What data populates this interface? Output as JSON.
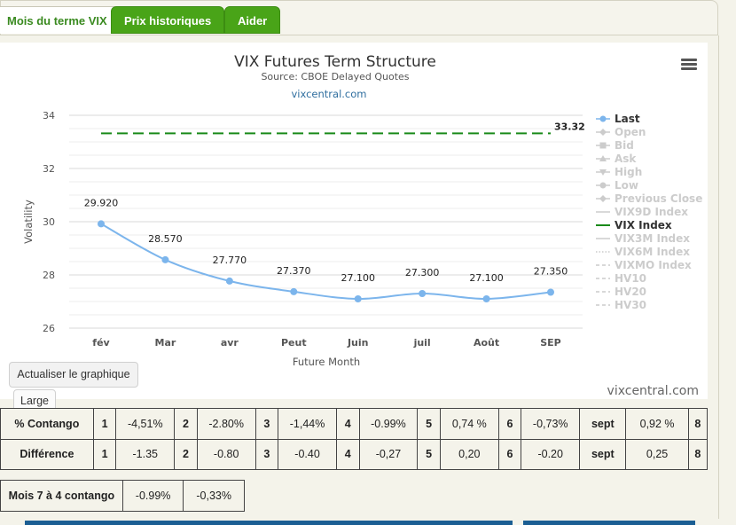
{
  "tabs": [
    {
      "label": "Mois du terme VIX"
    },
    {
      "label": "Prix historiques"
    },
    {
      "label": "Aider"
    }
  ],
  "chart": {
    "title": "VIX Futures Term Structure",
    "subtitle": "Source: CBOE Delayed Quotes",
    "link": "vixcentral.com",
    "watermark": "vixcentral.com"
  },
  "chart_data": {
    "type": "line",
    "title": "VIX Futures Term Structure",
    "subtitle": "Source: CBOE Delayed Quotes",
    "xlabel": "Future Month",
    "ylabel": "Volatility",
    "categories": [
      "fév",
      "Mar",
      "avr",
      "Peut",
      "Juin",
      "juil",
      "Août",
      "SEP"
    ],
    "ylim": [
      26,
      34
    ],
    "yticks": [
      "26",
      "28",
      "30",
      "32",
      "34"
    ],
    "grid": true,
    "legend_position": "right",
    "series": [
      {
        "name": "Last",
        "values": [
          29.92,
          28.57,
          27.77,
          27.37,
          27.1,
          27.3,
          27.1,
          27.35
        ],
        "labels": [
          "29.920",
          "28.570",
          "27.770",
          "27.370",
          "27.100",
          "27.300",
          "27.100",
          "27.350"
        ],
        "color": "#7cb5ec"
      },
      {
        "name": "VIX Index",
        "value": 33.32,
        "label": "33.32",
        "color": "#1a8a1a"
      }
    ],
    "legend": [
      {
        "name": "Last",
        "active": true,
        "symbol": "circle-line"
      },
      {
        "name": "Open",
        "active": false,
        "symbol": "diamond-line"
      },
      {
        "name": "Bid",
        "active": false,
        "symbol": "square-line"
      },
      {
        "name": "Ask",
        "active": false,
        "symbol": "triangle-line"
      },
      {
        "name": "High",
        "active": false,
        "symbol": "triangle-down-line"
      },
      {
        "name": "Low",
        "active": false,
        "symbol": "circle-line"
      },
      {
        "name": "Previous Close",
        "active": false,
        "symbol": "diamond-line"
      },
      {
        "name": "VIX9D Index",
        "active": false,
        "symbol": "line"
      },
      {
        "name": "VIX Index",
        "active": true,
        "symbol": "line"
      },
      {
        "name": "VIX3M Index",
        "active": false,
        "symbol": "line"
      },
      {
        "name": "VIX6M Index",
        "active": false,
        "symbol": "dot-line"
      },
      {
        "name": "VIXMO Index",
        "active": false,
        "symbol": "dash-line"
      },
      {
        "name": "HV10",
        "active": false,
        "symbol": "dash-line"
      },
      {
        "name": "HV20",
        "active": false,
        "symbol": "dash-line"
      },
      {
        "name": "HV30",
        "active": false,
        "symbol": "dash-line"
      }
    ]
  },
  "buttons": {
    "update_chart": "Actualiser le graphique",
    "large": "Large"
  },
  "contango_table": {
    "rows": [
      {
        "label": "% Contango",
        "cells": [
          "1",
          "-4,51%",
          "2",
          "-2.80%",
          "3",
          "-1,44%",
          "4",
          "-0.99%",
          "5",
          "0,74 %",
          "6",
          "-0,73%",
          "sept",
          "0,92 %",
          "8"
        ]
      },
      {
        "label": "Différence",
        "cells": [
          "1",
          "-1.35",
          "2",
          "-0.80",
          "3",
          "-0.40",
          "4",
          "-0,27",
          "5",
          "0,20",
          "6",
          "-0.20",
          "sept",
          "0,25",
          "8"
        ]
      }
    ]
  },
  "summary_table": {
    "label": "Mois 7 à 4 contango",
    "values": [
      "-0.99%",
      "-0,33%"
    ]
  }
}
